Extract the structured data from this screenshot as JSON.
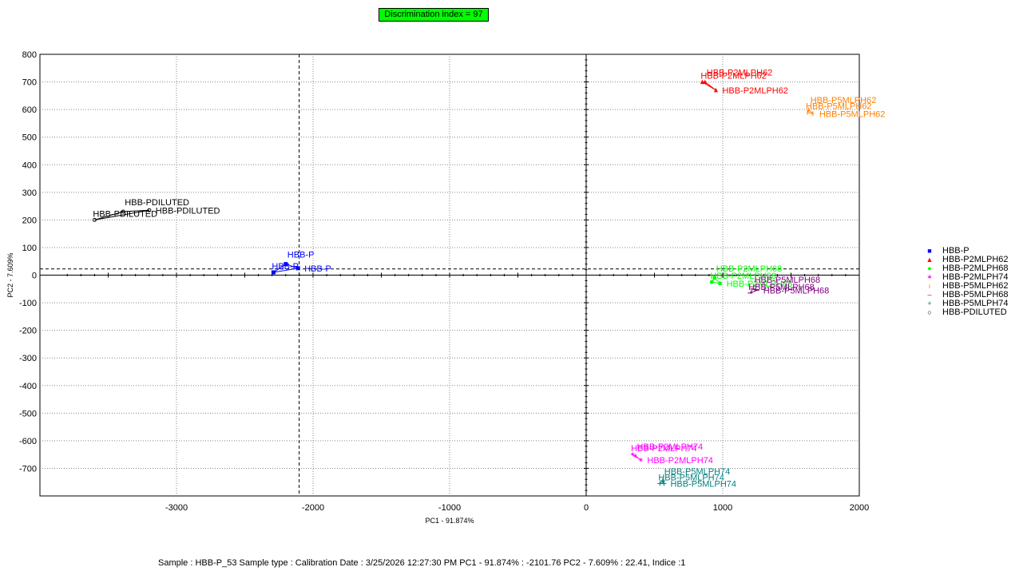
{
  "header": {
    "title": "Discrimination index = 97"
  },
  "chart_data": {
    "type": "scatter",
    "xlabel": "PC1 - 91.874%",
    "ylabel": "PC2 - 7.609%",
    "xlim": [
      -4000,
      2000
    ],
    "ylim": [
      -800,
      800
    ],
    "xticks": [
      -3000,
      -2000,
      -1000,
      0,
      1000,
      2000
    ],
    "yticks": [
      800,
      700,
      600,
      500,
      400,
      300,
      200,
      100,
      0,
      -100,
      -200,
      -300,
      -400,
      -500,
      -600,
      -700
    ],
    "grid": true,
    "legend_position": "right",
    "crosshair": {
      "x": -2101.76,
      "y": 22.41
    },
    "series": [
      {
        "name": "HBB-P",
        "color": "#0000ff",
        "marker": "square",
        "x": [
          -2290,
          -2200,
          -2110
        ],
        "y": [
          10,
          40,
          25
        ],
        "labels": [
          "HBB-P",
          "HBB-P",
          "HBB-P"
        ]
      },
      {
        "name": "HBB-P2MLPH62",
        "color": "#ff0000",
        "marker": "triangle",
        "x": [
          850,
          870,
          950
        ],
        "y": [
          700,
          700,
          670
        ],
        "labels": [
          "HBB-P2MLPH62",
          "HBB-P2MLPH62",
          "HBB-P2MLPH62"
        ]
      },
      {
        "name": "HBB-P2MLPH68",
        "color": "#00ff00",
        "marker": "circle",
        "x": [
          920,
          940,
          980
        ],
        "y": [
          -25,
          -10,
          -30
        ],
        "labels": [
          "HBB-P2MLPH68",
          "HBB-P2MLPH68",
          "HBB-P2MLPH68"
        ]
      },
      {
        "name": "HBB-P2MLPH74",
        "color": "#ff00ff",
        "marker": "star",
        "x": [
          340,
          360,
          400
        ],
        "y": [
          -650,
          -655,
          -670
        ],
        "labels": [
          "HBB-P2MLPH74",
          "HBB-P2MLPH74",
          "HBB-P2MLPH74"
        ]
      },
      {
        "name": "HBB-P5MLPH62",
        "color": "#ff8000",
        "marker": "vbar",
        "x": [
          1620,
          1630,
          1660
        ],
        "y": [
          590,
          600,
          585
        ],
        "labels": [
          "HBB-P5MLPH62",
          "HBB-P5MLPH62",
          "HBB-P5MLPH62"
        ]
      },
      {
        "name": "HBB-P5MLPH68",
        "color": "#800080",
        "marker": "dash",
        "x": [
          1200,
          1220,
          1250
        ],
        "y": [
          -65,
          -50,
          -55
        ],
        "labels": [
          "HBB-P5MLPH68",
          "HBB-P5MLPH68",
          "HBB-P5MLPH68"
        ]
      },
      {
        "name": "HBB-P5MLPH74",
        "color": "#008080",
        "marker": "plus",
        "x": [
          540,
          560,
          570
        ],
        "y": [
          -755,
          -745,
          -755
        ],
        "labels": [
          "HBB-P5MLPH74",
          "HBB-P5MLPH74",
          "HBB-P5MLPH74"
        ]
      },
      {
        "name": "HBB-PDILUTED",
        "color": "#000000",
        "marker": "ring",
        "x": [
          -3600,
          -3390,
          -3200
        ],
        "y": [
          200,
          230,
          235
        ],
        "labels": [
          "HBB-PDILUTED",
          "HBB-PDILUTED",
          "HBB-PDILUTED"
        ]
      }
    ]
  },
  "legend_markers": {
    "square": "■",
    "triangle": "▲",
    "circle": "●",
    "star": "✶",
    "vbar": "ı",
    "dash": "–",
    "plus": "+",
    "ring": "○"
  },
  "footer": {
    "text": "Sample : HBB-P_53    Sample type : Calibration    Date : 3/25/2026 12:27:30 PM    PC1 - 91.874% : -2101.76    PC2 - 7.609% : 22.41, Indice :1"
  }
}
